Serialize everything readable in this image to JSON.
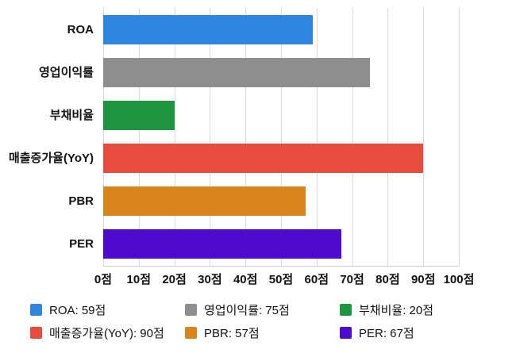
{
  "chart_data": {
    "type": "bar",
    "orientation": "horizontal",
    "title": "",
    "xlabel": "",
    "ylabel": "",
    "categories": [
      "ROA",
      "영업이익률",
      "부채비율",
      "매출증가율(YoY)",
      "PBR",
      "PER"
    ],
    "values": [
      59,
      75,
      20,
      90,
      57,
      67
    ],
    "colors": [
      "#2E86DE",
      "#8E8E8E",
      "#1E9641",
      "#E74C3C",
      "#D8861C",
      "#4E0BCE"
    ],
    "value_suffix": "점",
    "xlim": [
      0,
      100
    ],
    "x_tick_labels": [
      "0점",
      "10점",
      "20점",
      "30점",
      "40점",
      "50점",
      "60점",
      "70점",
      "80점",
      "90점",
      "100점"
    ],
    "grid": true,
    "legend_position": "bottom",
    "legend": [
      {
        "label": "ROA: 59점",
        "color": "#2E86DE"
      },
      {
        "label": "영업이익률: 75점",
        "color": "#8E8E8E"
      },
      {
        "label": "부채비율: 20점",
        "color": "#1E9641"
      },
      {
        "label": "매출증가율(YoY): 90점",
        "color": "#E74C3C"
      },
      {
        "label": "PBR: 57점",
        "color": "#D8861C"
      },
      {
        "label": "PER: 67점",
        "color": "#4E0BCE"
      }
    ]
  }
}
